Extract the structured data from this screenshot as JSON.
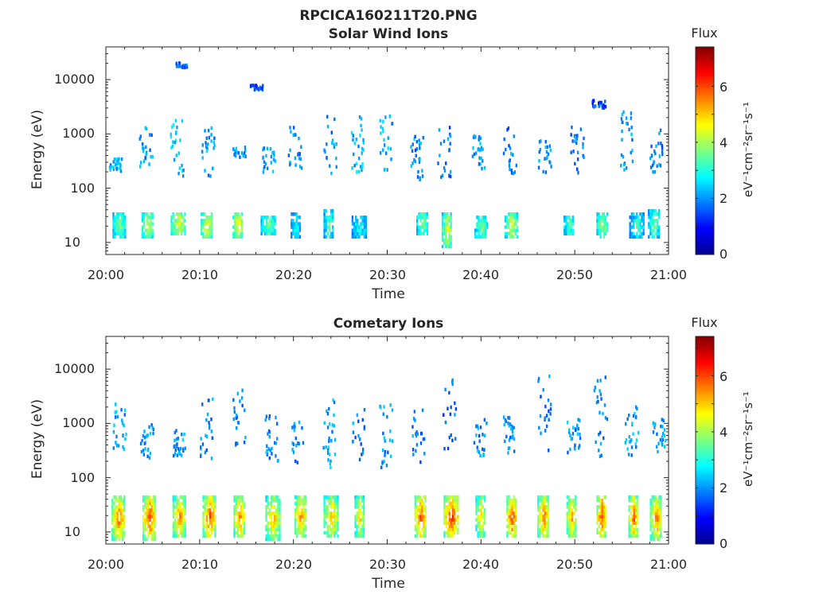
{
  "figure_title": "RPCICA160211T20.PNG",
  "colorbar": {
    "title": "Flux",
    "label": "eV⁻¹cm⁻²sr⁻¹s⁻¹",
    "range": [
      0,
      7.4
    ],
    "ticks": [
      "0",
      "2",
      "4",
      "6"
    ],
    "colormap": "jet"
  },
  "chart_data": [
    {
      "type": "heatmap",
      "title": "Solar Wind Ions",
      "xlabel": "Time",
      "ylabel": "Energy (eV)",
      "x_tick_labels": [
        "20:00",
        "20:10",
        "20:20",
        "20:30",
        "20:40",
        "20:50",
        "21:00"
      ],
      "xlim_minutes": [
        0,
        60
      ],
      "y_tick_labels": [
        "10",
        "100",
        "1000",
        "10000"
      ],
      "ylim": [
        6,
        40000
      ],
      "y_scale": "log",
      "bursts": [
        {
          "t": 1.2,
          "e_lo": 12,
          "e_hi": 35,
          "flux": 3.8
        },
        {
          "t": 4.3,
          "e_lo": 12,
          "e_hi": 35,
          "flux": 4.3
        },
        {
          "t": 7.4,
          "e_lo": 15,
          "e_hi": 35,
          "flux": 4.5
        },
        {
          "t": 10.6,
          "e_lo": 12,
          "e_hi": 35,
          "flux": 4.6
        },
        {
          "t": 14.0,
          "e_lo": 12,
          "e_hi": 35,
          "flux": 4.8
        },
        {
          "t": 17.0,
          "e_lo": 15,
          "e_hi": 30,
          "flux": 3.6
        },
        {
          "t": 20.2,
          "e_lo": 12,
          "e_hi": 35,
          "flux": 3.0
        },
        {
          "t": 23.7,
          "e_lo": 12,
          "e_hi": 40,
          "flux": 3.5
        },
        {
          "t": 26.7,
          "e_lo": 12,
          "e_hi": 30,
          "flux": 3.0
        },
        {
          "t": 33.6,
          "e_lo": 15,
          "e_hi": 35,
          "flux": 3.8
        },
        {
          "t": 36.3,
          "e_lo": 8,
          "e_hi": 35,
          "flux": 4.6
        },
        {
          "t": 39.8,
          "e_lo": 12,
          "e_hi": 30,
          "flux": 3.7
        },
        {
          "t": 43.0,
          "e_lo": 12,
          "e_hi": 35,
          "flux": 4.3
        },
        {
          "t": 49.3,
          "e_lo": 15,
          "e_hi": 30,
          "flux": 3.4
        },
        {
          "t": 52.8,
          "e_lo": 12,
          "e_hi": 35,
          "flux": 4.0
        },
        {
          "t": 56.3,
          "e_lo": 12,
          "e_hi": 35,
          "flux": 3.2
        },
        {
          "t": 58.3,
          "e_lo": 12,
          "e_hi": 40,
          "flux": 3.6
        }
      ],
      "scatter": [
        {
          "t": 1.0,
          "e_lo": 220,
          "e_hi": 380,
          "flux": 2.2
        },
        {
          "t": 4.2,
          "e_lo": 260,
          "e_hi": 1400,
          "flux": 2.0
        },
        {
          "t": 7.5,
          "e_lo": 180,
          "e_hi": 2500,
          "flux": 2.3
        },
        {
          "t": 8.0,
          "e_lo": 18000,
          "e_hi": 22000,
          "flux": 1.7
        },
        {
          "t": 10.8,
          "e_lo": 180,
          "e_hi": 1400,
          "flux": 2.1
        },
        {
          "t": 14.1,
          "e_lo": 400,
          "e_hi": 650,
          "flux": 2.0
        },
        {
          "t": 16.0,
          "e_lo": 7000,
          "e_hi": 8500,
          "flux": 1.5
        },
        {
          "t": 17.3,
          "e_lo": 210,
          "e_hi": 600,
          "flux": 2.0
        },
        {
          "t": 20.1,
          "e_lo": 250,
          "e_hi": 1500,
          "flux": 1.8
        },
        {
          "t": 23.8,
          "e_lo": 200,
          "e_hi": 2500,
          "flux": 1.9
        },
        {
          "t": 26.7,
          "e_lo": 200,
          "e_hi": 2600,
          "flux": 2.2
        },
        {
          "t": 29.8,
          "e_lo": 180,
          "e_hi": 2400,
          "flux": 2.1
        },
        {
          "t": 33.1,
          "e_lo": 150,
          "e_hi": 1100,
          "flux": 1.9
        },
        {
          "t": 36.0,
          "e_lo": 170,
          "e_hi": 1500,
          "flux": 1.8
        },
        {
          "t": 39.6,
          "e_lo": 200,
          "e_hi": 1000,
          "flux": 2.0
        },
        {
          "t": 43.0,
          "e_lo": 200,
          "e_hi": 1500,
          "flux": 1.9
        },
        {
          "t": 46.7,
          "e_lo": 190,
          "e_hi": 800,
          "flux": 2.0
        },
        {
          "t": 50.2,
          "e_lo": 200,
          "e_hi": 1500,
          "flux": 1.8
        },
        {
          "t": 52.5,
          "e_lo": 3200,
          "e_hi": 4500,
          "flux": 1.5
        },
        {
          "t": 55.4,
          "e_lo": 200,
          "e_hi": 2800,
          "flux": 2.1
        },
        {
          "t": 58.6,
          "e_lo": 200,
          "e_hi": 1400,
          "flux": 1.9
        }
      ]
    },
    {
      "type": "heatmap",
      "title": "Cometary Ions",
      "xlabel": "Time",
      "ylabel": "Energy (eV)",
      "x_tick_labels": [
        "20:00",
        "20:10",
        "20:20",
        "20:30",
        "20:40",
        "20:50",
        "21:00"
      ],
      "xlim_minutes": [
        0,
        60
      ],
      "y_tick_labels": [
        "10",
        "100",
        "1000",
        "10000"
      ],
      "ylim": [
        6,
        40000
      ],
      "y_scale": "log",
      "bursts": [
        {
          "t": 1.1,
          "e_lo": 7,
          "e_hi": 45,
          "flux": 5.8
        },
        {
          "t": 4.4,
          "e_lo": 7,
          "e_hi": 45,
          "flux": 6.2
        },
        {
          "t": 7.6,
          "e_lo": 8,
          "e_hi": 45,
          "flux": 5.6
        },
        {
          "t": 10.8,
          "e_lo": 8,
          "e_hi": 45,
          "flux": 6.0
        },
        {
          "t": 14.1,
          "e_lo": 8,
          "e_hi": 45,
          "flux": 5.7
        },
        {
          "t": 17.5,
          "e_lo": 7,
          "e_hi": 45,
          "flux": 5.3
        },
        {
          "t": 20.6,
          "e_lo": 8,
          "e_hi": 45,
          "flux": 5.5
        },
        {
          "t": 23.7,
          "e_lo": 8,
          "e_hi": 45,
          "flux": 5.2
        },
        {
          "t": 27.0,
          "e_lo": 8,
          "e_hi": 45,
          "flux": 5.0
        },
        {
          "t": 33.4,
          "e_lo": 8,
          "e_hi": 45,
          "flux": 6.1
        },
        {
          "t": 36.5,
          "e_lo": 8,
          "e_hi": 45,
          "flux": 6.3
        },
        {
          "t": 39.9,
          "e_lo": 8,
          "e_hi": 45,
          "flux": 5.0
        },
        {
          "t": 43.2,
          "e_lo": 8,
          "e_hi": 45,
          "flux": 6.2
        },
        {
          "t": 46.5,
          "e_lo": 8,
          "e_hi": 45,
          "flux": 5.8
        },
        {
          "t": 49.6,
          "e_lo": 8,
          "e_hi": 45,
          "flux": 5.4
        },
        {
          "t": 52.8,
          "e_lo": 8,
          "e_hi": 45,
          "flux": 6.2
        },
        {
          "t": 56.2,
          "e_lo": 8,
          "e_hi": 45,
          "flux": 5.9
        },
        {
          "t": 58.5,
          "e_lo": 7,
          "e_hi": 45,
          "flux": 5.7
        }
      ],
      "scatter": [
        {
          "t": 1.4,
          "e_lo": 300,
          "e_hi": 2500,
          "flux": 2.1
        },
        {
          "t": 4.3,
          "e_lo": 250,
          "e_hi": 1700,
          "flux": 2.0
        },
        {
          "t": 7.8,
          "e_lo": 250,
          "e_hi": 800,
          "flux": 2.1
        },
        {
          "t": 10.7,
          "e_lo": 200,
          "e_hi": 3400,
          "flux": 1.9
        },
        {
          "t": 14.2,
          "e_lo": 400,
          "e_hi": 4500,
          "flux": 1.8
        },
        {
          "t": 17.6,
          "e_lo": 200,
          "e_hi": 2000,
          "flux": 2.0
        },
        {
          "t": 20.3,
          "e_lo": 200,
          "e_hi": 1800,
          "flux": 2.0
        },
        {
          "t": 23.7,
          "e_lo": 150,
          "e_hi": 3200,
          "flux": 2.1
        },
        {
          "t": 26.9,
          "e_lo": 150,
          "e_hi": 2000,
          "flux": 1.9
        },
        {
          "t": 29.8,
          "e_lo": 150,
          "e_hi": 2400,
          "flux": 2.0
        },
        {
          "t": 33.2,
          "e_lo": 200,
          "e_hi": 2200,
          "flux": 1.9
        },
        {
          "t": 36.6,
          "e_lo": 300,
          "e_hi": 8000,
          "flux": 1.7
        },
        {
          "t": 39.8,
          "e_lo": 250,
          "e_hi": 1300,
          "flux": 1.9
        },
        {
          "t": 43.0,
          "e_lo": 300,
          "e_hi": 1500,
          "flux": 2.0
        },
        {
          "t": 46.7,
          "e_lo": 300,
          "e_hi": 8000,
          "flux": 1.8
        },
        {
          "t": 49.8,
          "e_lo": 300,
          "e_hi": 1300,
          "flux": 2.0
        },
        {
          "t": 52.7,
          "e_lo": 250,
          "e_hi": 8000,
          "flux": 1.8
        },
        {
          "t": 56.0,
          "e_lo": 250,
          "e_hi": 2200,
          "flux": 2.1
        },
        {
          "t": 58.9,
          "e_lo": 300,
          "e_hi": 1300,
          "flux": 2.0
        }
      ]
    }
  ]
}
